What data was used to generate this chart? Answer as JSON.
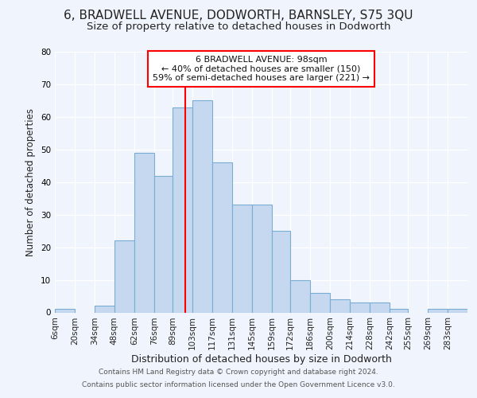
{
  "title1": "6, BRADWELL AVENUE, DODWORTH, BARNSLEY, S75 3QU",
  "title2": "Size of property relative to detached houses in Dodworth",
  "xlabel": "Distribution of detached houses by size in Dodworth",
  "ylabel": "Number of detached properties",
  "categories": [
    "6sqm",
    "20sqm",
    "34sqm",
    "48sqm",
    "62sqm",
    "76sqm",
    "89sqm",
    "103sqm",
    "117sqm",
    "131sqm",
    "145sqm",
    "159sqm",
    "172sqm",
    "186sqm",
    "200sqm",
    "214sqm",
    "228sqm",
    "242sqm",
    "255sqm",
    "269sqm",
    "283sqm"
  ],
  "values": [
    1,
    0,
    2,
    22,
    49,
    42,
    63,
    65,
    46,
    33,
    33,
    25,
    10,
    6,
    4,
    3,
    3,
    1,
    0,
    1,
    1
  ],
  "bar_color": "#c5d8f0",
  "bar_edge_color": "#7aadd4",
  "vline_x": 98,
  "vline_color": "red",
  "annotation_title": "6 BRADWELL AVENUE: 98sqm",
  "annotation_line1": "← 40% of detached houses are smaller (150)",
  "annotation_line2": "59% of semi-detached houses are larger (221) →",
  "annotation_box_facecolor": "white",
  "annotation_box_edgecolor": "red",
  "ylim": [
    0,
    80
  ],
  "yticks": [
    0,
    10,
    20,
    30,
    40,
    50,
    60,
    70,
    80
  ],
  "footer1": "Contains HM Land Registry data © Crown copyright and database right 2024.",
  "footer2": "Contains public sector information licensed under the Open Government Licence v3.0.",
  "background_color": "#f0f4fc",
  "bin_starts": [
    6,
    20,
    34,
    48,
    62,
    76,
    89,
    103,
    117,
    131,
    145,
    159,
    172,
    186,
    200,
    214,
    228,
    242,
    255,
    269,
    283
  ],
  "title1_fontsize": 11,
  "title2_fontsize": 9.5,
  "ylabel_fontsize": 8.5,
  "xlabel_fontsize": 9,
  "tick_fontsize": 7.5,
  "footer_fontsize": 6.5
}
